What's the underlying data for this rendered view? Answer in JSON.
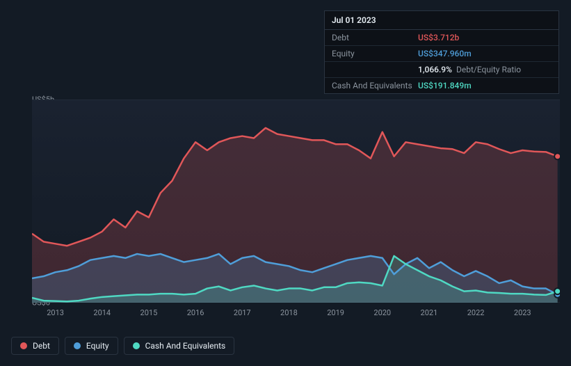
{
  "tooltip": {
    "date": "Jul 01 2023",
    "rows": [
      {
        "label": "Debt",
        "value": "US$3.712b",
        "color": "#e15759"
      },
      {
        "label": "Equity",
        "value": "US$347.960m",
        "color": "#4f9ed9"
      },
      {
        "label": "",
        "value": "1,066.9%",
        "extra": "Debt/Equity Ratio",
        "color": "#e6edf3"
      },
      {
        "label": "Cash And Equivalents",
        "value": "US$191.849m",
        "color": "#4fd9c3"
      }
    ]
  },
  "chart": {
    "type": "area",
    "background_color": "#131b25",
    "grid_color": "#2a3441",
    "label_color": "#8b949e",
    "label_fontsize": 11,
    "y_axis": {
      "min": 0,
      "max": 5.0,
      "ticks": [
        {
          "v": 0,
          "label": "US$0"
        },
        {
          "v": 5.0,
          "label": "US$5b"
        }
      ]
    },
    "x_axis": {
      "min": 2012.5,
      "max": 2023.8,
      "ticks": [
        2013,
        2014,
        2015,
        2016,
        2017,
        2018,
        2019,
        2020,
        2021,
        2022,
        2023
      ]
    },
    "series": [
      {
        "name": "Debt",
        "color": "#e15759",
        "fill_opacity": 0.22,
        "line_width": 2.5,
        "data": [
          [
            2012.5,
            1.7
          ],
          [
            2012.75,
            1.5
          ],
          [
            2013.0,
            1.45
          ],
          [
            2013.25,
            1.4
          ],
          [
            2013.5,
            1.5
          ],
          [
            2013.75,
            1.6
          ],
          [
            2014.0,
            1.75
          ],
          [
            2014.25,
            2.05
          ],
          [
            2014.5,
            1.85
          ],
          [
            2014.75,
            2.25
          ],
          [
            2015.0,
            2.1
          ],
          [
            2015.25,
            2.7
          ],
          [
            2015.5,
            3.0
          ],
          [
            2015.75,
            3.55
          ],
          [
            2016.0,
            3.95
          ],
          [
            2016.25,
            3.75
          ],
          [
            2016.5,
            3.95
          ],
          [
            2016.75,
            4.05
          ],
          [
            2017.0,
            4.1
          ],
          [
            2017.25,
            4.05
          ],
          [
            2017.5,
            4.3
          ],
          [
            2017.75,
            4.15
          ],
          [
            2018.0,
            4.1
          ],
          [
            2018.25,
            4.05
          ],
          [
            2018.5,
            4.0
          ],
          [
            2018.75,
            4.0
          ],
          [
            2019.0,
            3.9
          ],
          [
            2019.25,
            3.9
          ],
          [
            2019.5,
            3.75
          ],
          [
            2019.75,
            3.55
          ],
          [
            2020.0,
            4.2
          ],
          [
            2020.25,
            3.6
          ],
          [
            2020.5,
            3.95
          ],
          [
            2020.75,
            3.9
          ],
          [
            2021.0,
            3.85
          ],
          [
            2021.25,
            3.8
          ],
          [
            2021.5,
            3.78
          ],
          [
            2021.75,
            3.68
          ],
          [
            2022.0,
            3.95
          ],
          [
            2022.25,
            3.9
          ],
          [
            2022.5,
            3.78
          ],
          [
            2022.75,
            3.68
          ],
          [
            2023.0,
            3.75
          ],
          [
            2023.25,
            3.72
          ],
          [
            2023.5,
            3.71
          ],
          [
            2023.75,
            3.6
          ]
        ]
      },
      {
        "name": "Equity",
        "color": "#4f9ed9",
        "fill_opacity": 0.22,
        "line_width": 2.5,
        "data": [
          [
            2012.5,
            0.6
          ],
          [
            2012.75,
            0.65
          ],
          [
            2013.0,
            0.75
          ],
          [
            2013.25,
            0.8
          ],
          [
            2013.5,
            0.9
          ],
          [
            2013.75,
            1.05
          ],
          [
            2014.0,
            1.1
          ],
          [
            2014.25,
            1.15
          ],
          [
            2014.5,
            1.1
          ],
          [
            2014.75,
            1.2
          ],
          [
            2015.0,
            1.15
          ],
          [
            2015.25,
            1.2
          ],
          [
            2015.5,
            1.1
          ],
          [
            2015.75,
            1.0
          ],
          [
            2016.0,
            1.05
          ],
          [
            2016.25,
            1.1
          ],
          [
            2016.5,
            1.2
          ],
          [
            2016.75,
            0.95
          ],
          [
            2017.0,
            1.1
          ],
          [
            2017.25,
            1.15
          ],
          [
            2017.5,
            1.0
          ],
          [
            2017.75,
            0.95
          ],
          [
            2018.0,
            0.9
          ],
          [
            2018.25,
            0.8
          ],
          [
            2018.5,
            0.75
          ],
          [
            2018.75,
            0.85
          ],
          [
            2019.0,
            0.95
          ],
          [
            2019.25,
            1.05
          ],
          [
            2019.5,
            1.1
          ],
          [
            2019.75,
            1.15
          ],
          [
            2020.0,
            1.1
          ],
          [
            2020.25,
            0.7
          ],
          [
            2020.5,
            0.95
          ],
          [
            2020.75,
            1.1
          ],
          [
            2021.0,
            0.85
          ],
          [
            2021.25,
            1.0
          ],
          [
            2021.5,
            0.8
          ],
          [
            2021.75,
            0.65
          ],
          [
            2022.0,
            0.78
          ],
          [
            2022.25,
            0.65
          ],
          [
            2022.5,
            0.48
          ],
          [
            2022.75,
            0.55
          ],
          [
            2023.0,
            0.4
          ],
          [
            2023.25,
            0.35
          ],
          [
            2023.5,
            0.35
          ],
          [
            2023.75,
            0.2
          ]
        ]
      },
      {
        "name": "Cash And Equivalents",
        "color": "#4fd9c3",
        "fill_opacity": 0.22,
        "line_width": 2.5,
        "data": [
          [
            2012.5,
            0.12
          ],
          [
            2012.75,
            0.05
          ],
          [
            2013.0,
            0.04
          ],
          [
            2013.25,
            0.03
          ],
          [
            2013.5,
            0.05
          ],
          [
            2013.75,
            0.1
          ],
          [
            2014.0,
            0.14
          ],
          [
            2014.25,
            0.16
          ],
          [
            2014.5,
            0.18
          ],
          [
            2014.75,
            0.2
          ],
          [
            2015.0,
            0.2
          ],
          [
            2015.25,
            0.22
          ],
          [
            2015.5,
            0.22
          ],
          [
            2015.75,
            0.2
          ],
          [
            2016.0,
            0.22
          ],
          [
            2016.25,
            0.35
          ],
          [
            2016.5,
            0.4
          ],
          [
            2016.75,
            0.3
          ],
          [
            2017.0,
            0.38
          ],
          [
            2017.25,
            0.42
          ],
          [
            2017.5,
            0.35
          ],
          [
            2017.75,
            0.3
          ],
          [
            2018.0,
            0.35
          ],
          [
            2018.25,
            0.35
          ],
          [
            2018.5,
            0.3
          ],
          [
            2018.75,
            0.38
          ],
          [
            2019.0,
            0.38
          ],
          [
            2019.25,
            0.48
          ],
          [
            2019.5,
            0.5
          ],
          [
            2019.75,
            0.48
          ],
          [
            2020.0,
            0.42
          ],
          [
            2020.25,
            1.15
          ],
          [
            2020.5,
            0.95
          ],
          [
            2020.75,
            0.8
          ],
          [
            2021.0,
            0.65
          ],
          [
            2021.25,
            0.55
          ],
          [
            2021.5,
            0.4
          ],
          [
            2021.75,
            0.28
          ],
          [
            2022.0,
            0.3
          ],
          [
            2022.25,
            0.25
          ],
          [
            2022.5,
            0.24
          ],
          [
            2022.75,
            0.22
          ],
          [
            2023.0,
            0.22
          ],
          [
            2023.25,
            0.2
          ],
          [
            2023.5,
            0.19
          ],
          [
            2023.75,
            0.28
          ]
        ]
      }
    ]
  },
  "legend": {
    "items": [
      {
        "label": "Debt",
        "color": "#e15759"
      },
      {
        "label": "Equity",
        "color": "#4f9ed9"
      },
      {
        "label": "Cash And Equivalents",
        "color": "#4fd9c3"
      }
    ]
  }
}
